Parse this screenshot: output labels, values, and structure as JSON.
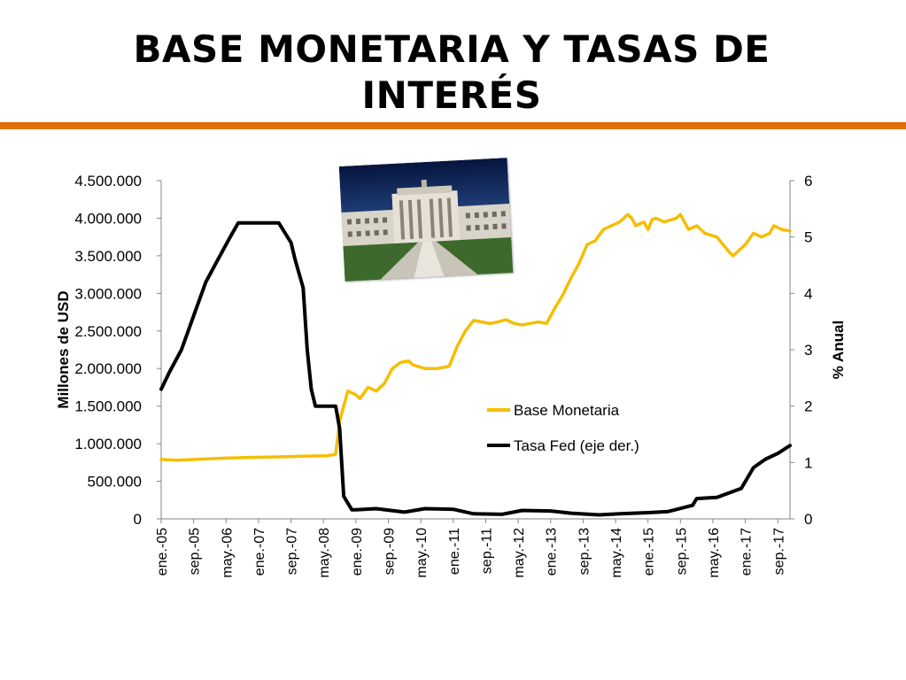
{
  "title": "BASE MONETARIA Y TASAS DE INTERÉS",
  "colors": {
    "accent_rule": "#E46C0A",
    "base": "#F5BE00",
    "fed": "#000000"
  },
  "photo": {
    "icon": "federal-reserve-building-photo"
  },
  "chart_data": {
    "type": "line",
    "title": "",
    "ylabel": "Millones de USD",
    "y2label": "% Anual",
    "ylim": [
      0,
      4500000
    ],
    "y2lim": [
      0,
      6
    ],
    "yticks": [
      "0",
      "500.000",
      "1.000.000",
      "1.500.000",
      "2.000.000",
      "2.500.000",
      "3.000.000",
      "3.500.000",
      "4.000.000",
      "4.500.000"
    ],
    "y2ticks": [
      "0",
      "1",
      "2",
      "3",
      "4",
      "5",
      "6"
    ],
    "xticks": [
      "ene.-05",
      "sep.-05",
      "may.-06",
      "ene.-07",
      "sep.-07",
      "may.-08",
      "ene.-09",
      "sep.-09",
      "may.-10",
      "ene.-11",
      "sep.-11",
      "may.-12",
      "ene.-13",
      "sep.-13",
      "may.-14",
      "ene.-15",
      "sep.-15",
      "may.-16",
      "ene.-17",
      "sep.-17"
    ],
    "xlim": [
      "2005-01",
      "2017-12"
    ],
    "legend_position": "center-right",
    "series": [
      {
        "name": "Base Monetaria",
        "axis": "left",
        "color": "#F5BE00",
        "x": [
          "2005-01",
          "2005-05",
          "2006-01",
          "2006-06",
          "2007-01",
          "2007-06",
          "2008-01",
          "2008-06",
          "2008-08",
          "2008-09",
          "2008-11",
          "2009-01",
          "2009-02",
          "2009-04",
          "2009-06",
          "2009-08",
          "2009-10",
          "2009-12",
          "2010-02",
          "2010-03",
          "2010-06",
          "2010-09",
          "2010-12",
          "2011-02",
          "2011-04",
          "2011-06",
          "2011-08",
          "2011-10",
          "2011-12",
          "2012-02",
          "2012-04",
          "2012-06",
          "2012-08",
          "2012-10",
          "2012-12",
          "2013-02",
          "2013-04",
          "2013-06",
          "2013-08",
          "2013-10",
          "2013-12",
          "2014-02",
          "2014-04",
          "2014-06",
          "2014-08",
          "2014-09",
          "2014-10",
          "2014-12",
          "2015-01",
          "2015-02",
          "2015-03",
          "2015-05",
          "2015-08",
          "2015-09",
          "2015-10",
          "2015-11",
          "2016-01",
          "2016-03",
          "2016-06",
          "2016-09",
          "2016-10",
          "2016-12",
          "2017-01",
          "2017-03",
          "2017-05",
          "2017-07",
          "2017-08",
          "2017-10",
          "2017-12"
        ],
        "y": [
          790000,
          780000,
          800000,
          810000,
          820000,
          825000,
          835000,
          840000,
          860000,
          1300000,
          1700000,
          1650000,
          1600000,
          1750000,
          1700000,
          1800000,
          2000000,
          2080000,
          2100000,
          2050000,
          2000000,
          2000000,
          2030000,
          2300000,
          2500000,
          2640000,
          2620000,
          2600000,
          2620000,
          2650000,
          2600000,
          2580000,
          2600000,
          2620000,
          2600000,
          2800000,
          2980000,
          3200000,
          3400000,
          3650000,
          3700000,
          3850000,
          3900000,
          3950000,
          4050000,
          4000000,
          3900000,
          3950000,
          3850000,
          3980000,
          4000000,
          3950000,
          4000000,
          4050000,
          3950000,
          3850000,
          3900000,
          3800000,
          3750000,
          3550000,
          3500000,
          3600000,
          3650000,
          3800000,
          3750000,
          3800000,
          3900000,
          3850000,
          3830000
        ]
      },
      {
        "name": "Tasa Fed (eje der.)",
        "axis": "right",
        "color": "#000000",
        "x": [
          "2005-01",
          "2005-03",
          "2005-06",
          "2005-09",
          "2005-12",
          "2006-03",
          "2006-06",
          "2006-08",
          "2007-01",
          "2007-06",
          "2007-09",
          "2007-10",
          "2007-12",
          "2008-01",
          "2008-02",
          "2008-03",
          "2008-05",
          "2008-08",
          "2008-09",
          "2008-10",
          "2008-12",
          "2009-01",
          "2009-06",
          "2010-01",
          "2010-06",
          "2011-01",
          "2011-06",
          "2012-01",
          "2012-06",
          "2013-01",
          "2013-06",
          "2014-01",
          "2014-06",
          "2015-01",
          "2015-06",
          "2015-12",
          "2016-01",
          "2016-06",
          "2016-12",
          "2017-03",
          "2017-06",
          "2017-09",
          "2017-12"
        ],
        "y": [
          2.3,
          2.6,
          3.0,
          3.6,
          4.2,
          4.6,
          5.0,
          5.25,
          5.25,
          5.25,
          4.9,
          4.6,
          4.1,
          3.0,
          2.3,
          2.0,
          2.0,
          2.0,
          1.6,
          0.4,
          0.16,
          0.16,
          0.18,
          0.12,
          0.18,
          0.17,
          0.09,
          0.08,
          0.15,
          0.14,
          0.1,
          0.07,
          0.09,
          0.11,
          0.13,
          0.24,
          0.36,
          0.38,
          0.54,
          0.91,
          1.06,
          1.16,
          1.3
        ]
      }
    ]
  }
}
